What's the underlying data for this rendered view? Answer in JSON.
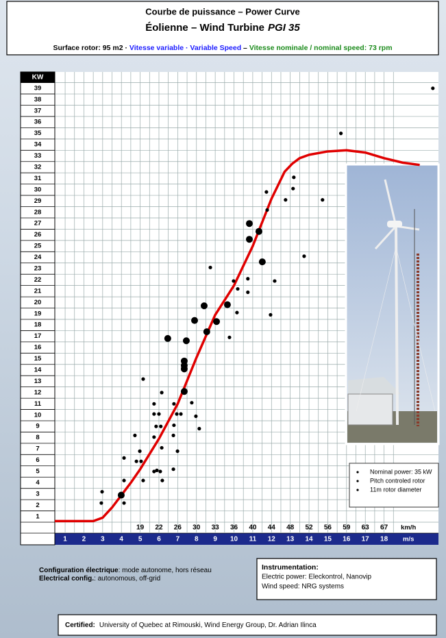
{
  "header": {
    "title": "Courbe de puissance – Power Curve",
    "subtitle": "Éolienne – Wind Turbine",
    "model": "PGI 35",
    "specs": [
      {
        "text": "Surface rotor: 95 m2  · ",
        "color": "#000000"
      },
      {
        "text": "Vitesse variable · Variable Speed",
        "color": "#1a1aff"
      },
      {
        "text": " – ",
        "color": "#000000"
      },
      {
        "text": "Vitesse nominale / nominal speed: 73 rpm",
        "color": "#1a8a1a"
      }
    ]
  },
  "chart_data": {
    "type": "scatter",
    "y_label": "KW",
    "x_label": "m/s",
    "x2_label": "km/h",
    "xlim": [
      0.45,
      20.9
    ],
    "ylim": [
      0.5,
      40.45
    ],
    "xticks": [
      1,
      2,
      3,
      4,
      5,
      6,
      7,
      8,
      9,
      10,
      11,
      12,
      13,
      14,
      15,
      16,
      17,
      18
    ],
    "yticks": [
      1,
      2,
      3,
      4,
      5,
      6,
      7,
      8,
      9,
      10,
      11,
      12,
      13,
      14,
      15,
      16,
      17,
      18,
      19,
      20,
      21,
      22,
      23,
      24,
      25,
      26,
      27,
      28,
      29,
      30,
      31,
      32,
      33,
      34,
      35,
      36,
      37,
      38,
      39
    ],
    "x2_categories": [
      null,
      null,
      null,
      null,
      19,
      22,
      26,
      30,
      33,
      36,
      40,
      44,
      48,
      52,
      56,
      59,
      63,
      67
    ],
    "grid": true,
    "series": [
      {
        "color": "#e00000",
        "line": true,
        "x": [
          0.45,
          2.5,
          3,
          3.5,
          4,
          4.5,
          5,
          6,
          7,
          8,
          9,
          10,
          11,
          12,
          12.7,
          13.1,
          13.5,
          14,
          15,
          16,
          17,
          18,
          19,
          19.9
        ],
        "values": [
          0.6,
          0.6,
          0.9,
          1.8,
          2.9,
          4,
          5.2,
          7.9,
          11,
          15.1,
          18.9,
          21.5,
          25,
          29.2,
          31.6,
          32.3,
          32.8,
          33.1,
          33.4,
          33.5,
          33.3,
          32.8,
          32.4,
          32.2
        ]
      },
      {
        "color": "#000000",
        "marker_size": 2.6,
        "x": [
          20.6,
          15.7,
          13.19,
          11.73,
          13.15,
          12.75,
          14.72,
          11.77,
          13.74,
          8.74,
          9.98,
          10.74,
          12.17,
          10.2,
          10.74,
          10.16,
          11.95,
          9.76,
          5.16,
          6.15,
          5.74,
          7.75,
          5.74,
          6.0,
          6.8,
          6.95,
          7.17,
          7.97,
          6.8,
          5.85,
          6.1,
          8.15,
          4.72,
          5.74,
          6.77,
          6.15,
          4.98,
          6.99,
          4.14,
          4.8,
          5.05,
          5.89,
          6.77,
          5.74,
          6.07,
          4.14,
          5.16,
          6.18,
          2.97,
          2.93,
          4.14
        ],
        "values": [
          39,
          35,
          31.1,
          29.8,
          30.1,
          29.1,
          29.1,
          28.2,
          24.1,
          23.1,
          21.9,
          22.1,
          21.9,
          21.2,
          20.9,
          19.1,
          18.9,
          16.9,
          13.2,
          12,
          11,
          11.1,
          10.1,
          10.1,
          11,
          10.1,
          10.1,
          9.9,
          9.1,
          9,
          9,
          8.8,
          8.2,
          8.05,
          8.2,
          7.1,
          6.8,
          6.8,
          6.2,
          5.9,
          5.9,
          5.1,
          5.2,
          5,
          5,
          4.2,
          4.2,
          4.2,
          3.2,
          2.2,
          2.2
        ]
      },
      {
        "color": "#000000",
        "marker_size": 5,
        "x": [
          10.82,
          11.33,
          10.82,
          11.51,
          8.41,
          9.65,
          7.9,
          9.07,
          8.55,
          6.47,
          7.46,
          7.35,
          7.35,
          7.35,
          7.35,
          3.99
        ],
        "values": [
          27,
          26.3,
          25.6,
          23.6,
          19.7,
          19.8,
          18.4,
          18.3,
          17.4,
          16.8,
          16.6,
          14.8,
          14.4,
          14.1,
          12.1,
          2.9
        ]
      }
    ]
  },
  "legend_box": [
    "Nominal power: 35 kW",
    "Pitch controled rotor",
    "11m rotor diameter"
  ],
  "config": {
    "fr_label": "Configuration  électrique",
    "fr_text": ":  mode autonome, hors réseau",
    "en_label": "Electrical config.",
    "en_text": ": autonomous, off-grid"
  },
  "instrumentation": {
    "title": "Instrumentation:",
    "lines": [
      "Electric power: Eleckontrol, Nanovip",
      "Wind speed: NRG systems"
    ]
  },
  "certified": {
    "label": "Certified:",
    "text": "University of Quebec at Rimouski, Wind Energy Group, Dr. Adrian Ilinca"
  }
}
